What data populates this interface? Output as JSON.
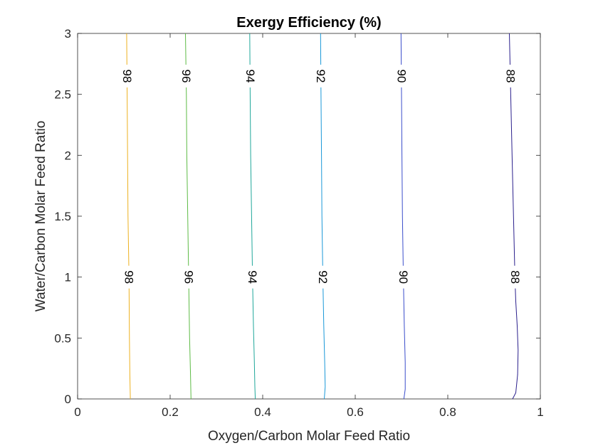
{
  "chart_data": {
    "type": "contour",
    "title": "Exergy Efficiency (%)",
    "xlabel": "Oxygen/Carbon Molar Feed Ratio",
    "ylabel": "Water/Carbon Molar Feed Ratio",
    "xlim": [
      0,
      1
    ],
    "ylim": [
      0,
      3
    ],
    "xticks": [
      "0",
      "0.2",
      "0.4",
      "0.6",
      "0.8",
      "1"
    ],
    "yticks": [
      "0",
      "0.5",
      "1",
      "1.5",
      "2",
      "2.5",
      "3"
    ],
    "grid": false,
    "label_y_positions": [
      2.65,
      1.0
    ],
    "levels": [
      {
        "label": "98",
        "color": "#EDB120",
        "points": [
          [
            0.114,
            0
          ],
          [
            0.113,
            0.2
          ],
          [
            0.112,
            0.5
          ],
          [
            0.111,
            1.0
          ],
          [
            0.109,
            1.5
          ],
          [
            0.108,
            2.0
          ],
          [
            0.107,
            2.5
          ],
          [
            0.106,
            3.0
          ]
        ]
      },
      {
        "label": "96",
        "color": "#5DBB45",
        "points": [
          [
            0.245,
            0
          ],
          [
            0.244,
            0.2
          ],
          [
            0.242,
            0.5
          ],
          [
            0.24,
            1.0
          ],
          [
            0.238,
            1.5
          ],
          [
            0.236,
            2.0
          ],
          [
            0.235,
            2.5
          ],
          [
            0.233,
            3.0
          ]
        ]
      },
      {
        "label": "94",
        "color": "#1FA79A",
        "points": [
          [
            0.384,
            0
          ],
          [
            0.383,
            0.1
          ],
          [
            0.382,
            0.3
          ],
          [
            0.38,
            0.6
          ],
          [
            0.378,
            1.0
          ],
          [
            0.376,
            1.5
          ],
          [
            0.374,
            2.0
          ],
          [
            0.373,
            2.5
          ],
          [
            0.372,
            3.0
          ]
        ]
      },
      {
        "label": "92",
        "color": "#1A98D8",
        "points": [
          [
            0.533,
            0
          ],
          [
            0.535,
            0.1
          ],
          [
            0.534,
            0.3
          ],
          [
            0.532,
            0.6
          ],
          [
            0.53,
            1.0
          ],
          [
            0.528,
            1.5
          ],
          [
            0.527,
            2.0
          ],
          [
            0.526,
            2.5
          ],
          [
            0.525,
            3.0
          ]
        ]
      },
      {
        "label": "90",
        "color": "#3A4DCB",
        "points": [
          [
            0.705,
            0
          ],
          [
            0.708,
            0.08
          ],
          [
            0.708,
            0.3
          ],
          [
            0.706,
            0.6
          ],
          [
            0.704,
            1.0
          ],
          [
            0.702,
            1.5
          ],
          [
            0.701,
            2.0
          ],
          [
            0.7,
            2.5
          ],
          [
            0.699,
            3.0
          ]
        ]
      },
      {
        "label": "88",
        "color": "#2A1F8C",
        "points": [
          [
            0.94,
            0
          ],
          [
            0.947,
            0.05
          ],
          [
            0.951,
            0.2
          ],
          [
            0.952,
            0.4
          ],
          [
            0.95,
            0.6
          ],
          [
            0.947,
            0.8
          ],
          [
            0.945,
            1.0
          ],
          [
            0.942,
            1.5
          ],
          [
            0.939,
            2.0
          ],
          [
            0.936,
            2.5
          ],
          [
            0.933,
            3.0
          ]
        ]
      }
    ]
  }
}
